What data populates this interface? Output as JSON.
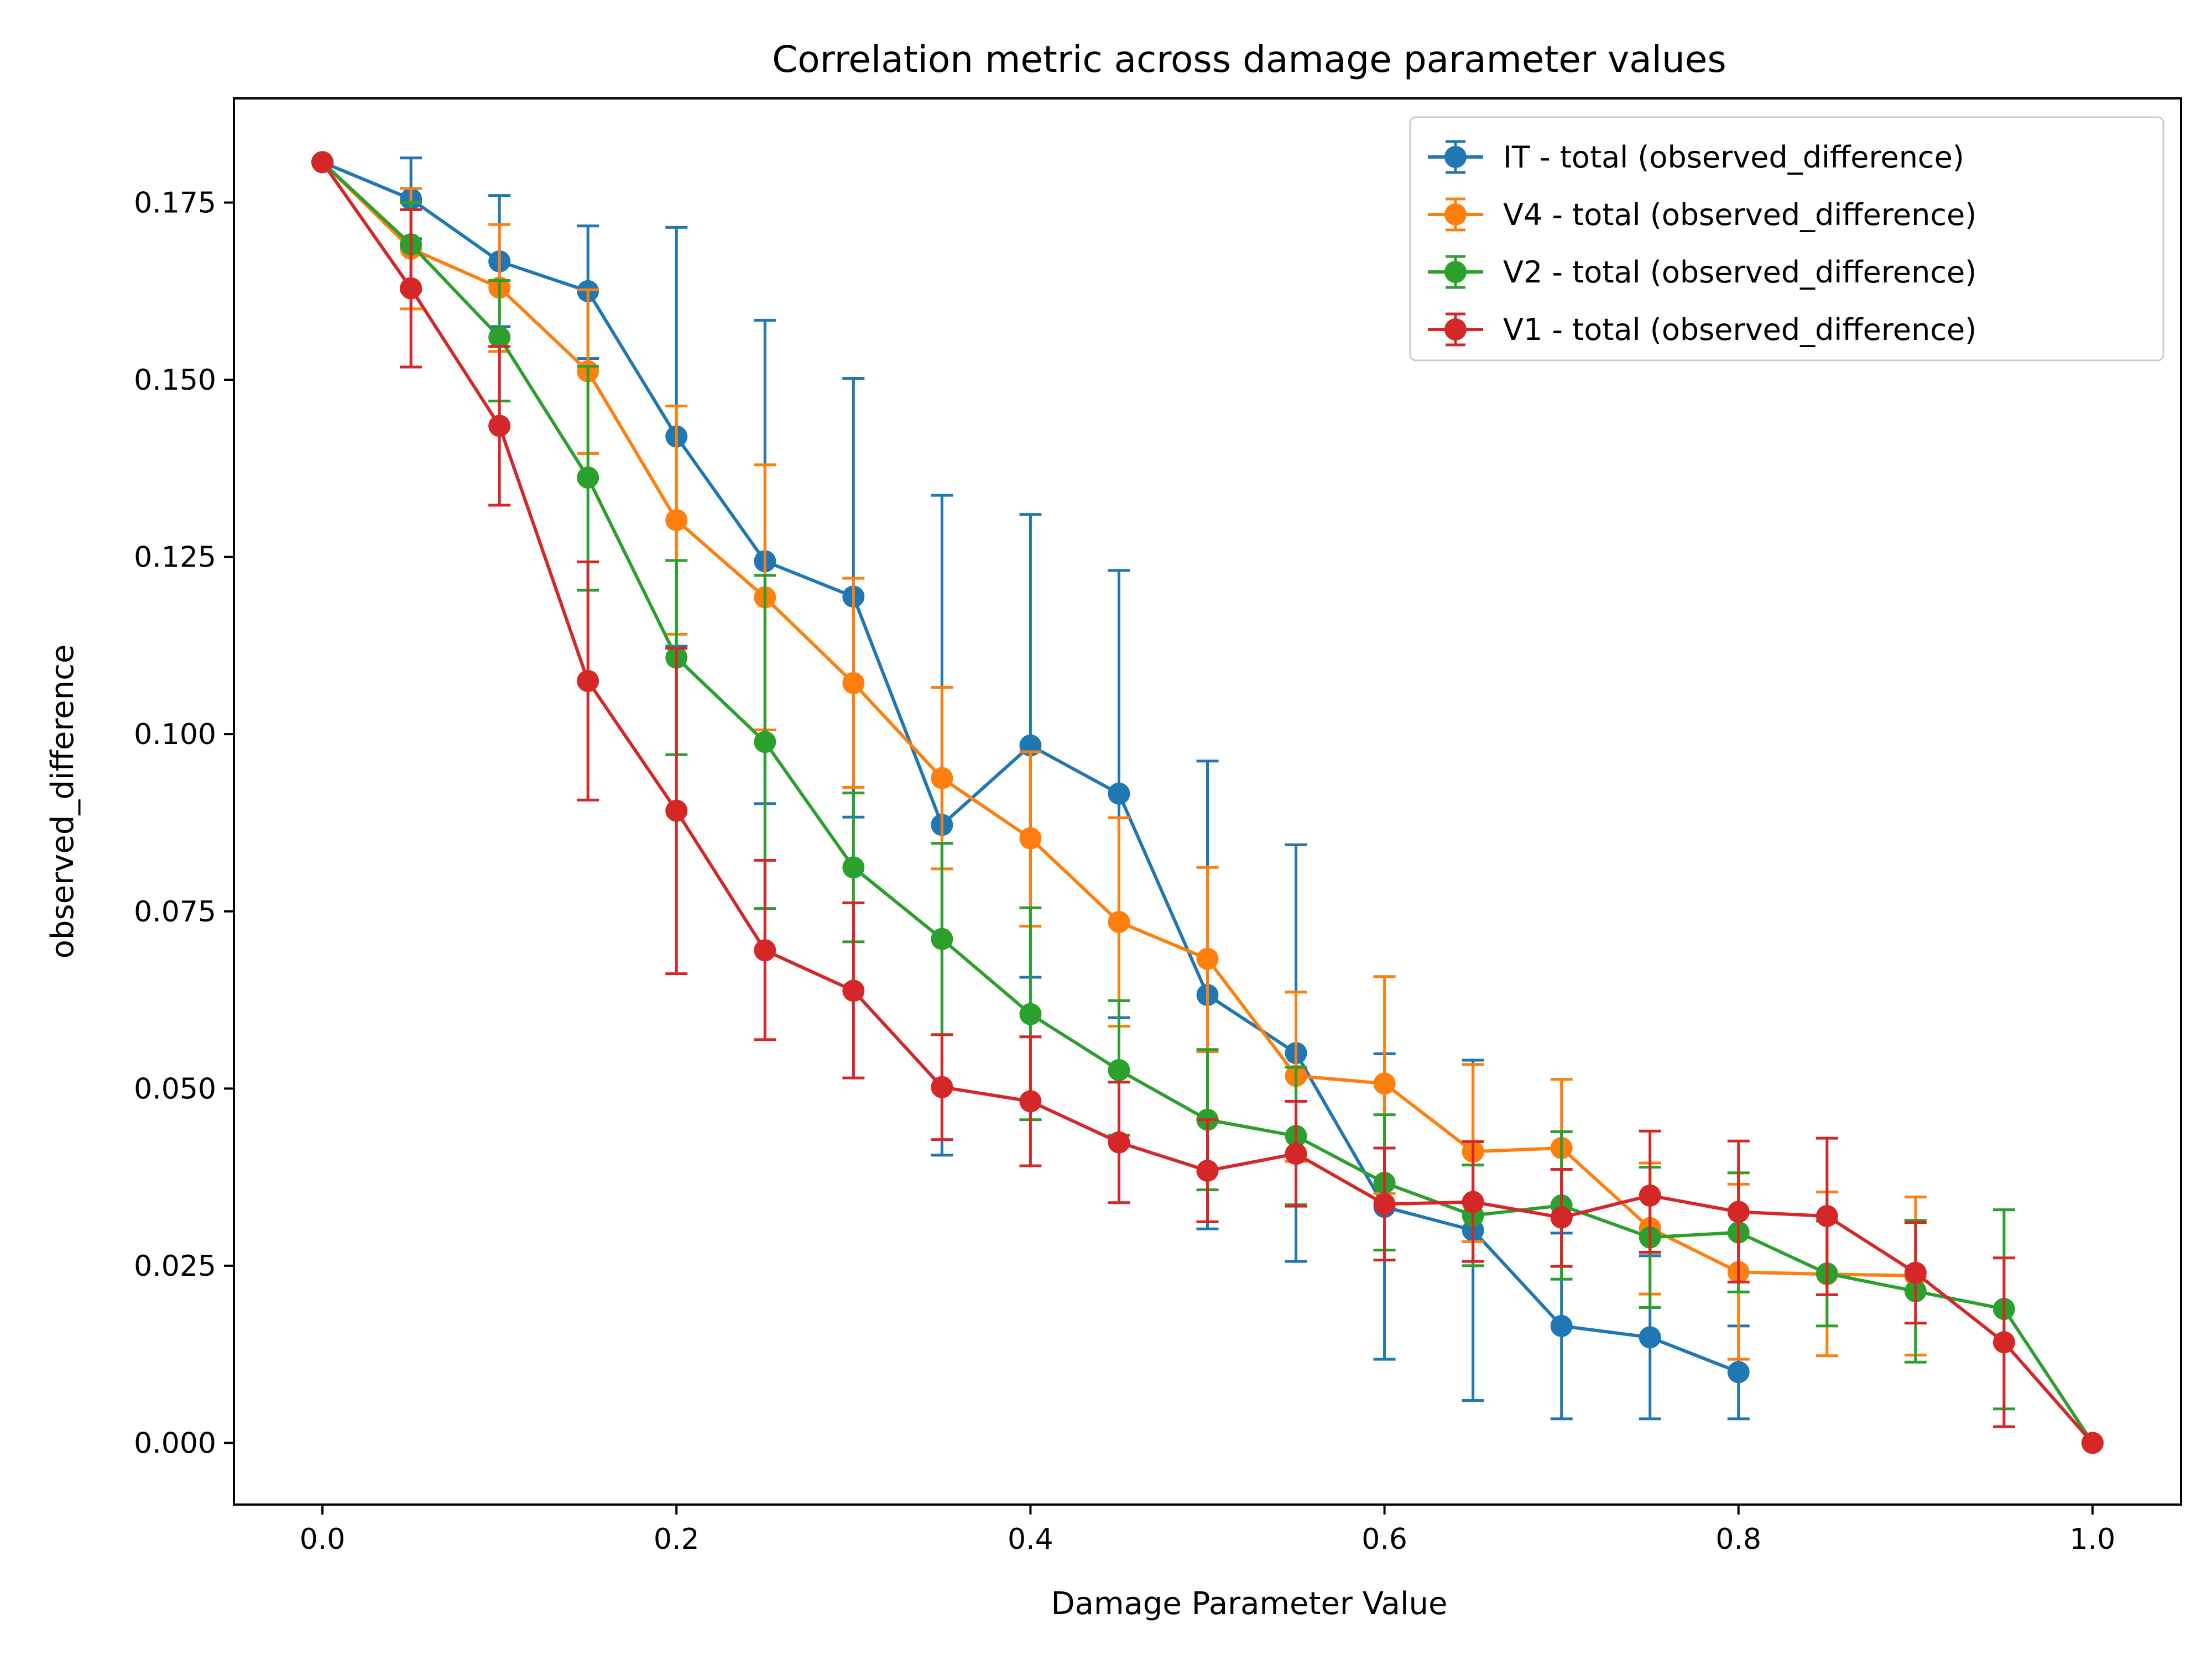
{
  "chart_data": {
    "type": "line",
    "title": "Correlation metric across damage parameter values",
    "xlabel": "Damage Parameter Value",
    "ylabel": "observed_difference",
    "xlim": [
      -0.05,
      1.05
    ],
    "ylim": [
      -0.0087,
      0.1897
    ],
    "xticks": [
      "0.0",
      "0.2",
      "0.4",
      "0.6",
      "0.8",
      "1.0"
    ],
    "yticks": [
      "0.000",
      "0.025",
      "0.050",
      "0.075",
      "0.100",
      "0.125",
      "0.150",
      "0.175"
    ],
    "grid": false,
    "legend_position": "top-right",
    "error_bars": true,
    "series": [
      {
        "name": "IT - total (observed_difference)",
        "color": "#1f77b4",
        "x": [
          0.0,
          0.05,
          0.1,
          0.15,
          0.2,
          0.25,
          0.3,
          0.35,
          0.4,
          0.45,
          0.5,
          0.55,
          0.6,
          0.65,
          0.7,
          0.75,
          0.8
        ],
        "y": [
          0.1807,
          0.1755,
          0.1667,
          0.1625,
          0.142,
          0.1244,
          0.1194,
          0.0872,
          0.0984,
          0.0916,
          0.0632,
          0.055,
          0.0333,
          0.03,
          0.0165,
          0.0149,
          0.01
        ],
        "lower": [
          0.1807,
          0.1699,
          0.1575,
          0.153,
          0.1124,
          0.0902,
          0.0883,
          0.0406,
          0.0657,
          0.06,
          0.0302,
          0.0256,
          0.0118,
          0.006,
          0.0034,
          0.0034,
          0.0034
        ],
        "upper": [
          0.1807,
          0.1813,
          0.176,
          0.1717,
          0.1715,
          0.1584,
          0.1502,
          0.1337,
          0.131,
          0.1231,
          0.0962,
          0.0844,
          0.0549,
          0.054,
          0.0296,
          0.0264,
          0.0165
        ]
      },
      {
        "name": "V4 - total (observed_difference)",
        "color": "#ff7f0e",
        "x": [
          0.0,
          0.05,
          0.1,
          0.15,
          0.2,
          0.25,
          0.3,
          0.35,
          0.4,
          0.45,
          0.5,
          0.55,
          0.6,
          0.65,
          0.7,
          0.75,
          0.8,
          0.85,
          0.9
        ],
        "y": [
          0.1807,
          0.1685,
          0.163,
          0.1512,
          0.1302,
          0.1193,
          0.1072,
          0.0938,
          0.0853,
          0.0735,
          0.0683,
          0.0518,
          0.0507,
          0.0411,
          0.0416,
          0.0303,
          0.0241,
          0.0238,
          0.0236
        ],
        "lower": [
          0.1807,
          0.16,
          0.154,
          0.1396,
          0.1141,
          0.1006,
          0.0925,
          0.081,
          0.0729,
          0.0588,
          0.0552,
          0.0397,
          0.0352,
          0.0284,
          0.0318,
          0.021,
          0.0118,
          0.0123,
          0.0124
        ],
        "upper": [
          0.1807,
          0.177,
          0.1719,
          0.1627,
          0.1463,
          0.138,
          0.122,
          0.1066,
          0.0975,
          0.0882,
          0.0812,
          0.0636,
          0.0658,
          0.0534,
          0.0513,
          0.0395,
          0.0365,
          0.0354,
          0.0347
        ]
      },
      {
        "name": "V2 - total (observed_difference)",
        "color": "#2ca02c",
        "x": [
          0.0,
          0.05,
          0.1,
          0.15,
          0.2,
          0.25,
          0.3,
          0.35,
          0.4,
          0.45,
          0.5,
          0.55,
          0.6,
          0.65,
          0.7,
          0.75,
          0.8,
          0.85,
          0.9,
          0.95,
          1.0
        ],
        "y": [
          0.1807,
          0.1691,
          0.156,
          0.1362,
          0.1108,
          0.0989,
          0.0812,
          0.0711,
          0.0605,
          0.0526,
          0.0456,
          0.0433,
          0.0367,
          0.0321,
          0.0335,
          0.029,
          0.0297,
          0.0239,
          0.0214,
          0.0189,
          0.0
        ],
        "lower": [
          0.1807,
          0.1625,
          0.147,
          0.1203,
          0.0971,
          0.0754,
          0.0707,
          0.0576,
          0.0456,
          0.0434,
          0.0357,
          0.0336,
          0.0272,
          0.025,
          0.0231,
          0.0191,
          0.0213,
          0.0165,
          0.0114,
          0.0048,
          0.0
        ],
        "upper": [
          0.1807,
          0.175,
          0.164,
          0.1519,
          0.1245,
          0.1224,
          0.0917,
          0.0846,
          0.0755,
          0.0624,
          0.0555,
          0.053,
          0.0463,
          0.0392,
          0.0439,
          0.0389,
          0.0381,
          0.0313,
          0.0314,
          0.0329,
          0.0
        ]
      },
      {
        "name": "V1 - total (observed_difference)",
        "color": "#d62728",
        "x": [
          0.0,
          0.05,
          0.1,
          0.15,
          0.2,
          0.25,
          0.3,
          0.35,
          0.4,
          0.45,
          0.5,
          0.55,
          0.6,
          0.65,
          0.7,
          0.75,
          0.8,
          0.85,
          0.9,
          0.95,
          1.0
        ],
        "y": [
          0.1807,
          0.1629,
          0.1435,
          0.1075,
          0.0892,
          0.0695,
          0.0638,
          0.0502,
          0.0482,
          0.0424,
          0.0384,
          0.0408,
          0.0337,
          0.034,
          0.0318,
          0.0349,
          0.0326,
          0.032,
          0.024,
          0.0142,
          0.0
        ],
        "lower": [
          0.1807,
          0.1518,
          0.1323,
          0.0907,
          0.0662,
          0.0569,
          0.0515,
          0.0428,
          0.0391,
          0.0339,
          0.0312,
          0.0334,
          0.0258,
          0.0256,
          0.0249,
          0.0269,
          0.0227,
          0.0209,
          0.0169,
          0.0023,
          0.0
        ],
        "upper": [
          0.1807,
          0.174,
          0.1547,
          0.1243,
          0.1121,
          0.0822,
          0.0762,
          0.0576,
          0.0573,
          0.0509,
          0.0456,
          0.0482,
          0.0416,
          0.0425,
          0.0386,
          0.044,
          0.0426,
          0.043,
          0.0311,
          0.0261,
          0.0
        ]
      }
    ]
  }
}
